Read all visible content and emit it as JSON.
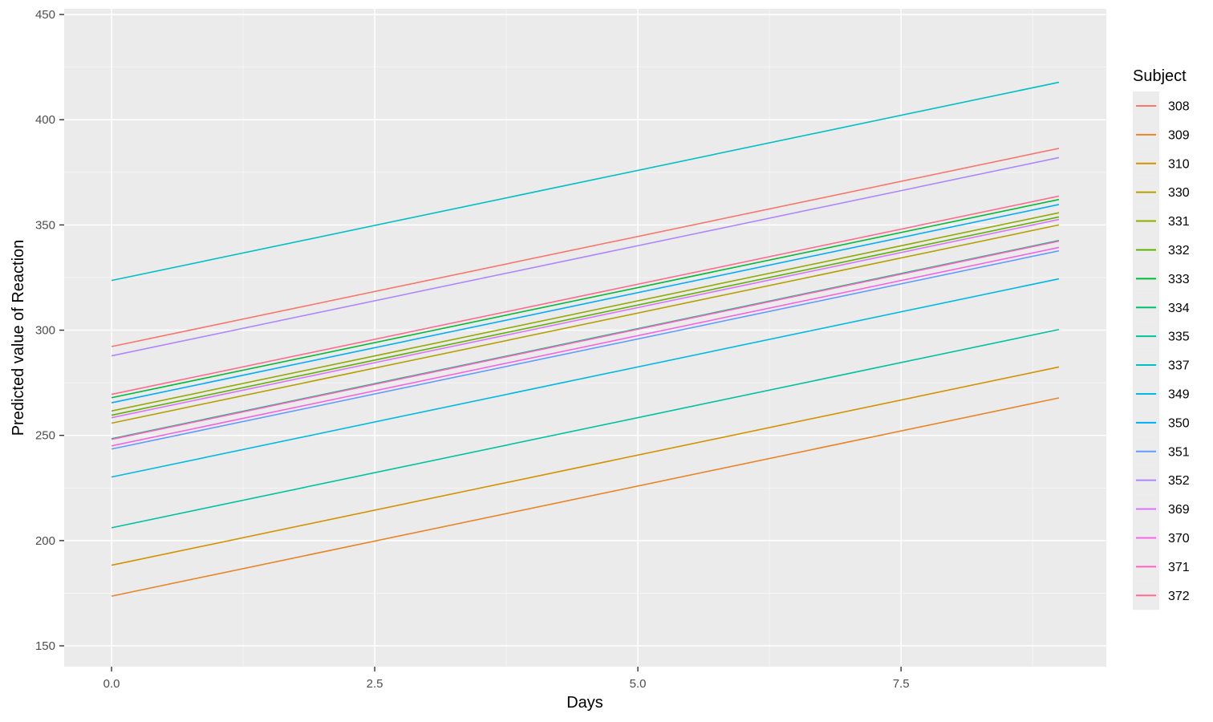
{
  "chart_data": {
    "type": "line",
    "title": "",
    "xlabel": "Days",
    "ylabel": "Predicted value of Reaction",
    "legend_title": "Subject",
    "legend_position": "right",
    "grid": true,
    "x": [
      0,
      9
    ],
    "x_axis": {
      "ticks": [
        0,
        2.5,
        5,
        7.5
      ],
      "tick_labels": [
        "0.0",
        "2.5",
        "5.0",
        "7.5"
      ],
      "minor": [
        1.25,
        3.75,
        6.25,
        8.75
      ],
      "range": [
        -0.45,
        9.45
      ]
    },
    "y_axis": {
      "ticks": [
        150,
        200,
        250,
        300,
        350,
        400,
        450
      ],
      "tick_labels": [
        "150",
        "200",
        "250",
        "300",
        "350",
        "400",
        "450"
      ],
      "minor": [
        175,
        225,
        275,
        325,
        375,
        425
      ],
      "range": [
        140.1,
        452.7
      ]
    },
    "series": [
      {
        "name": "308",
        "color": "#F8766D",
        "values": [
          292.2,
          386.4
        ]
      },
      {
        "name": "309",
        "color": "#E88526",
        "values": [
          173.6,
          267.8
        ]
      },
      {
        "name": "310",
        "color": "#D39200",
        "values": [
          188.3,
          282.5
        ]
      },
      {
        "name": "330",
        "color": "#B79F00",
        "values": [
          255.8,
          350.0
        ]
      },
      {
        "name": "331",
        "color": "#93AA00",
        "values": [
          261.6,
          355.8
        ]
      },
      {
        "name": "332",
        "color": "#5EB300",
        "values": [
          259.6,
          353.8
        ]
      },
      {
        "name": "333",
        "color": "#00BA38",
        "values": [
          267.9,
          362.1
        ]
      },
      {
        "name": "334",
        "color": "#00BF74",
        "values": [
          248.4,
          342.6
        ]
      },
      {
        "name": "335",
        "color": "#00C19F",
        "values": [
          206.1,
          300.3
        ]
      },
      {
        "name": "337",
        "color": "#00BFC4",
        "values": [
          323.6,
          417.8
        ]
      },
      {
        "name": "349",
        "color": "#00B9E3",
        "values": [
          230.2,
          324.4
        ]
      },
      {
        "name": "350",
        "color": "#00ADFA",
        "values": [
          265.5,
          359.7
        ]
      },
      {
        "name": "351",
        "color": "#619CFF",
        "values": [
          243.5,
          337.7
        ]
      },
      {
        "name": "352",
        "color": "#AE87FF",
        "values": [
          287.8,
          382.0
        ]
      },
      {
        "name": "369",
        "color": "#DB72FB",
        "values": [
          258.4,
          352.6
        ]
      },
      {
        "name": "370",
        "color": "#F564E3",
        "values": [
          245.0,
          339.3
        ]
      },
      {
        "name": "371",
        "color": "#FF61C3",
        "values": [
          248.1,
          342.3
        ]
      },
      {
        "name": "372",
        "color": "#FF6C90",
        "values": [
          269.5,
          363.7
        ]
      }
    ]
  },
  "colors": {
    "panel_bg": "#EBEBEB",
    "grid_major": "#FFFFFF",
    "grid_minor": "#F7F7F7",
    "tick_mark": "#333333",
    "tick_label": "#4D4D4D",
    "axis_title": "#000000",
    "legend_key_bg": "#ECECEC",
    "page_bg": "#FFFFFF"
  }
}
